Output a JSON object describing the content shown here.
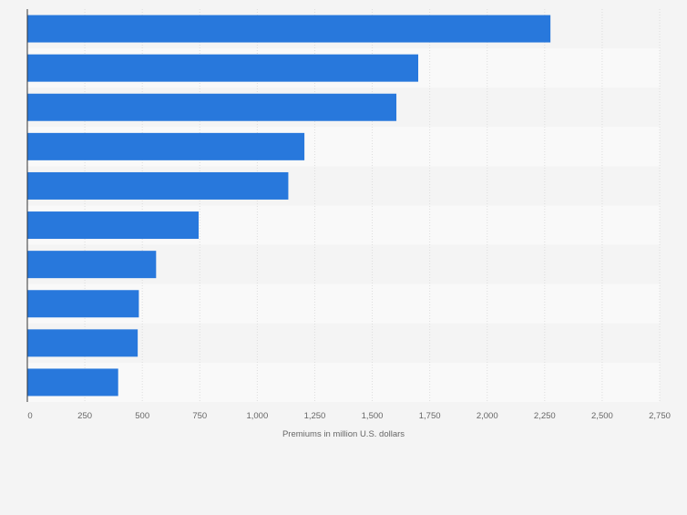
{
  "chart_data": {
    "type": "bar",
    "orientation": "horizontal",
    "categories": [
      "",
      "",
      "",
      "",
      "",
      "",
      "",
      "",
      "",
      ""
    ],
    "values": [
      2275,
      1700,
      1605,
      1205,
      1135,
      745,
      560,
      485,
      480,
      395
    ],
    "title": "",
    "xlabel": "Premiums in million U.S. dollars",
    "ylabel": "",
    "xlim": [
      0,
      2750
    ],
    "xticks": [
      0,
      250,
      500,
      750,
      1000,
      1250,
      1500,
      1750,
      2000,
      2250,
      2500,
      2750
    ],
    "xtick_labels": [
      "0",
      "250",
      "500",
      "750",
      "1,000",
      "1,250",
      "1,500",
      "1,750",
      "2,000",
      "2,250",
      "2,500",
      "2,750"
    ],
    "grid": true,
    "bar_color": "#2878dc",
    "band_colors": [
      "#f4f4f4",
      "#f9f9f9"
    ]
  }
}
